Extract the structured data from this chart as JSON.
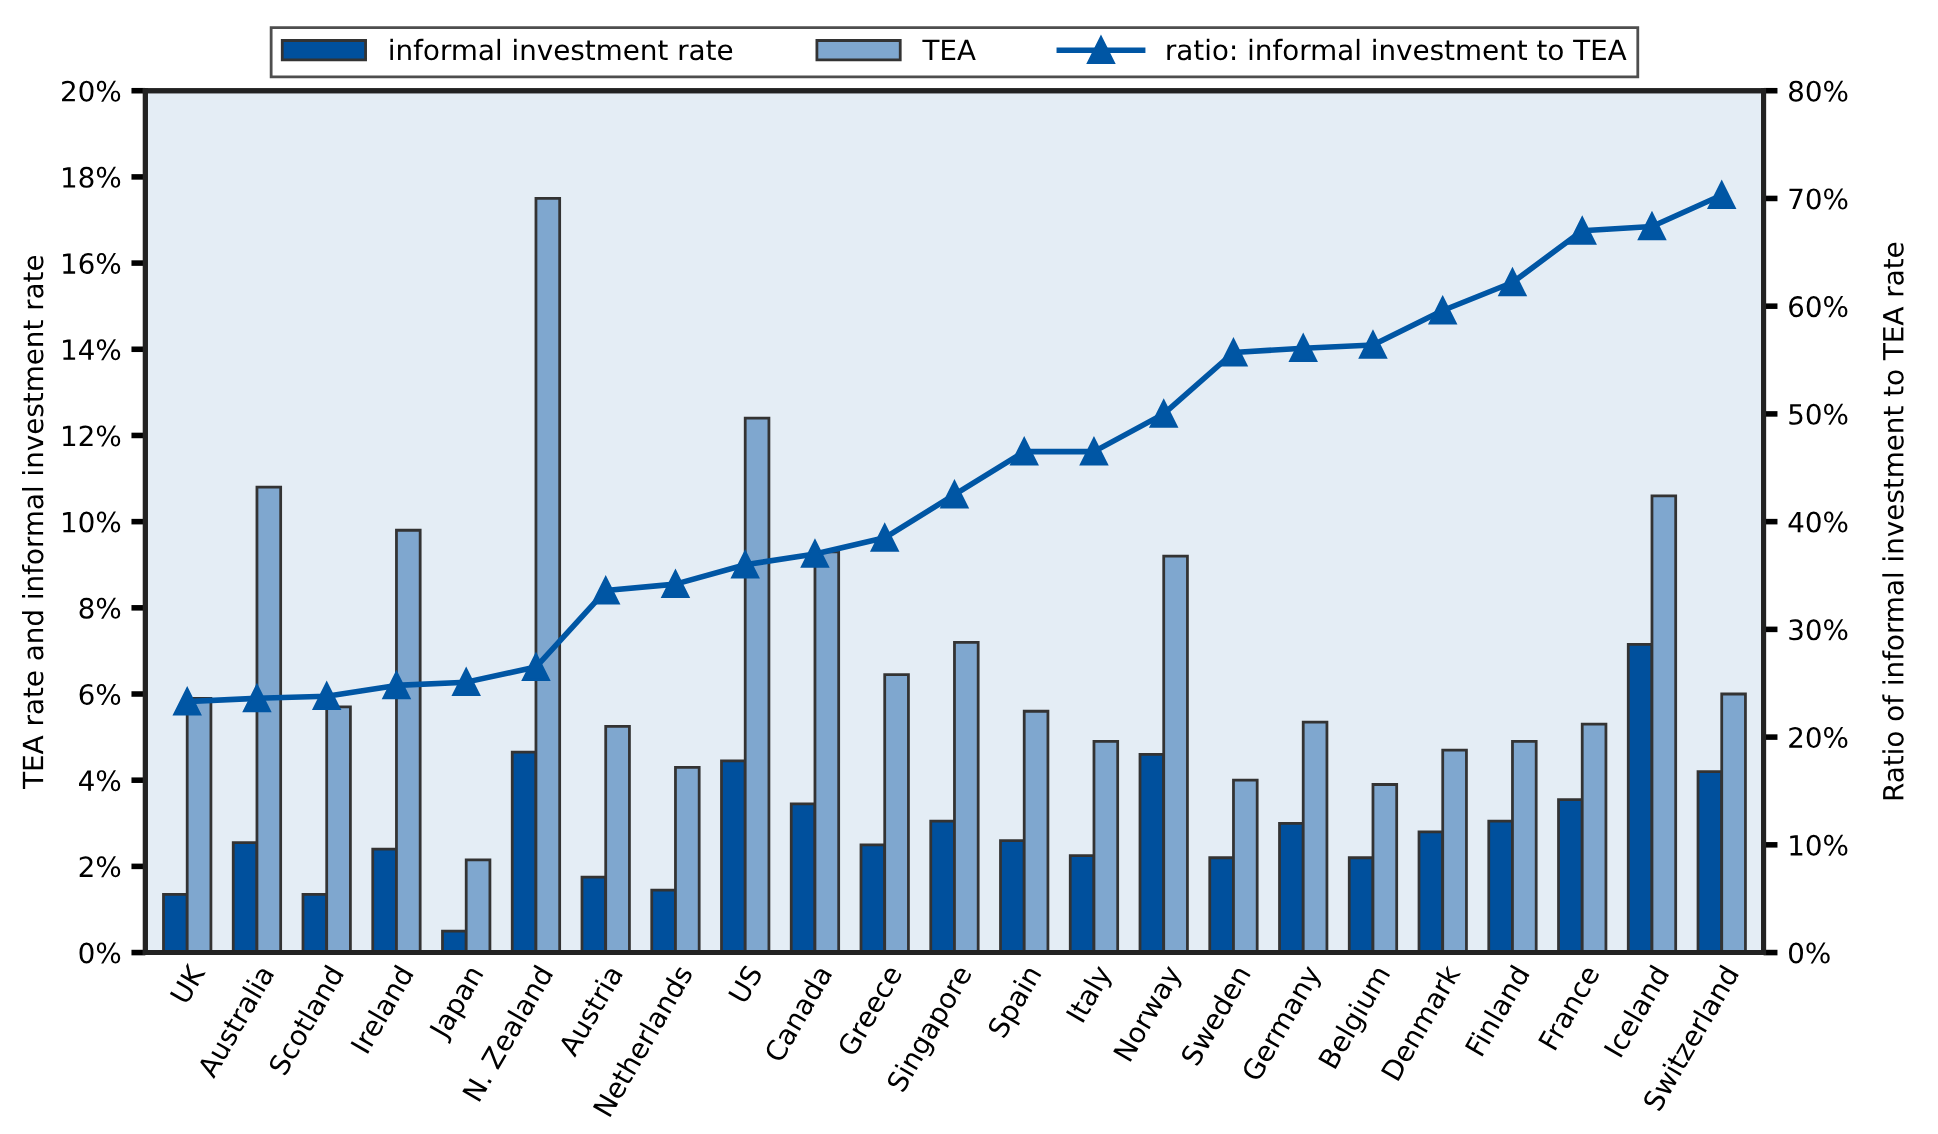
{
  "chart_data": {
    "type": "bar",
    "categories": [
      "UK",
      "Australia",
      "Scotland",
      "Ireland",
      "Japan",
      "N. Zealand",
      "Austria",
      "Netherlands",
      "US",
      "Canada",
      "Greece",
      "Singapore",
      "Spain",
      "Italy",
      "Norway",
      "Sweden",
      "Germany",
      "Belgium",
      "Denmark",
      "Finland",
      "France",
      "Iceland",
      "Switzerland"
    ],
    "series": [
      {
        "name": "informal investment rate",
        "color": "#00509d",
        "values": [
          1.35,
          2.55,
          1.35,
          2.4,
          0.5,
          4.65,
          1.75,
          1.45,
          4.45,
          3.45,
          2.5,
          3.05,
          2.6,
          2.25,
          4.6,
          2.2,
          3.0,
          2.2,
          2.8,
          3.05,
          3.55,
          7.15,
          4.2
        ]
      },
      {
        "name": "TEA",
        "color": "#7fa7cf",
        "values": [
          5.9,
          10.8,
          5.7,
          9.8,
          2.15,
          17.5,
          5.25,
          4.3,
          12.4,
          9.3,
          6.45,
          7.2,
          5.6,
          4.9,
          9.2,
          4.0,
          5.35,
          3.9,
          4.7,
          4.9,
          5.3,
          10.6,
          6.0
        ]
      },
      {
        "name": "ratio: informal investment to TEA",
        "type": "line",
        "axis": "y2",
        "color": "#0056a4",
        "marker": "triangle",
        "values": [
          23.3,
          23.6,
          23.8,
          24.8,
          25.1,
          26.5,
          33.6,
          34.2,
          36,
          37,
          38.5,
          42.5,
          46.5,
          46.5,
          50,
          55.7,
          56.1,
          56.4,
          59.6,
          62.2,
          67,
          67.4,
          70.3
        ]
      }
    ],
    "ylabel": "TEA rate and informal investment rate",
    "y2label": "Ratio of informal investment to TEA rate",
    "ylim": [
      0,
      20
    ],
    "yticks": [
      {
        "value": 0,
        "label": "0%"
      },
      {
        "value": 2,
        "label": "2%"
      },
      {
        "value": 4,
        "label": "4%"
      },
      {
        "value": 6,
        "label": "6%"
      },
      {
        "value": 8,
        "label": "8%"
      },
      {
        "value": 10,
        "label": "10%"
      },
      {
        "value": 12,
        "label": "12%"
      },
      {
        "value": 14,
        "label": "14%"
      },
      {
        "value": 16,
        "label": "16%"
      },
      {
        "value": 18,
        "label": "18%"
      },
      {
        "value": 20,
        "label": "20%"
      }
    ],
    "y2lim": [
      0,
      80
    ],
    "y2ticks": [
      {
        "value": 0,
        "label": "0%"
      },
      {
        "value": 10,
        "label": "10%"
      },
      {
        "value": 20,
        "label": "20%"
      },
      {
        "value": 30,
        "label": "30%"
      },
      {
        "value": 40,
        "label": "40%"
      },
      {
        "value": 50,
        "label": "50%"
      },
      {
        "value": 60,
        "label": "60%"
      },
      {
        "value": 70,
        "label": "70%"
      },
      {
        "value": 80,
        "label": "80%"
      }
    ],
    "grid": false,
    "legend": "top"
  }
}
